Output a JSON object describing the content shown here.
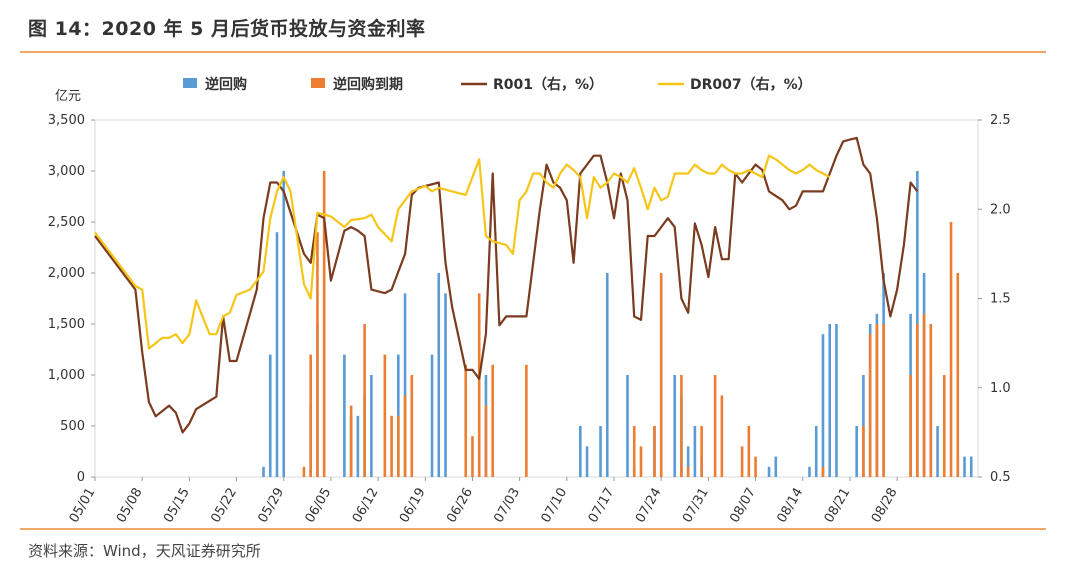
{
  "header": {
    "title": "图 14：2020 年 5 月后货币投放与资金利率"
  },
  "footer": {
    "source": "资料来源：Wind，天风证券研究所"
  },
  "colors": {
    "reverse_repo": "#5b9bd5",
    "reverse_repo_maturity": "#ed7d31",
    "r001": "#7a3b1e",
    "dr007": "#f5c518",
    "rule": "#f0a868"
  },
  "chart_data": {
    "type": "bar+line",
    "unit_left": "亿元",
    "legend": [
      "逆回购",
      "逆回购到期",
      "R001（右，%）",
      "DR007（右，%）"
    ],
    "x_ticks": [
      "05/01",
      "05/08",
      "05/15",
      "05/22",
      "05/29",
      "06/05",
      "06/12",
      "06/19",
      "06/26",
      "07/03",
      "07/10",
      "07/17",
      "07/24",
      "07/31",
      "08/07",
      "08/14",
      "08/21",
      "08/28"
    ],
    "y_left": {
      "min": 0,
      "max": 3500,
      "ticks": [
        "0",
        "500",
        "1,000",
        "1,500",
        "2,000",
        "2,500",
        "3,000",
        "3,500"
      ]
    },
    "y_right": {
      "min": 0.5,
      "max": 2.5,
      "ticks": [
        "0.5",
        "1.0",
        "1.5",
        "2.0",
        "2.5"
      ]
    },
    "x_day_range": [
      0,
      125
    ],
    "series": [
      {
        "name": "逆回购",
        "kind": "bar",
        "points": [
          [
            25,
            100
          ],
          [
            26,
            1200
          ],
          [
            27,
            2400
          ],
          [
            28,
            3000
          ],
          [
            32,
            700
          ],
          [
            33,
            1500
          ],
          [
            37,
            1200
          ],
          [
            38,
            600
          ],
          [
            39,
            600
          ],
          [
            40,
            800
          ],
          [
            41,
            1000
          ],
          [
            45,
            1200
          ],
          [
            46,
            1800
          ],
          [
            50,
            1200
          ],
          [
            51,
            2000
          ],
          [
            52,
            1800
          ],
          [
            58,
            1000
          ],
          [
            72,
            500
          ],
          [
            73,
            300
          ],
          [
            75,
            500
          ],
          [
            76,
            2000
          ],
          [
            79,
            1000
          ],
          [
            80,
            100
          ],
          [
            83,
            500
          ],
          [
            86,
            1000
          ],
          [
            87,
            800
          ],
          [
            88,
            300
          ],
          [
            89,
            500
          ],
          [
            90,
            200
          ],
          [
            100,
            100
          ],
          [
            101,
            200
          ],
          [
            106,
            100
          ],
          [
            107,
            500
          ],
          [
            108,
            1400
          ],
          [
            109,
            1500
          ],
          [
            110,
            1500
          ],
          [
            113,
            500
          ],
          [
            114,
            1000
          ],
          [
            115,
            1500
          ],
          [
            116,
            1600
          ],
          [
            117,
            2000
          ],
          [
            121,
            1600
          ],
          [
            122,
            3000
          ],
          [
            123,
            2000
          ],
          [
            124,
            1000
          ],
          [
            125,
            500
          ],
          [
            128,
            200
          ],
          [
            129,
            200
          ],
          [
            130,
            200
          ]
        ]
      },
      {
        "name": "逆回购到期",
        "kind": "bar",
        "points": [
          [
            31,
            100
          ],
          [
            32,
            1200
          ],
          [
            33,
            2400
          ],
          [
            34,
            3000
          ],
          [
            38,
            700
          ],
          [
            40,
            1500
          ],
          [
            43,
            1200
          ],
          [
            44,
            600
          ],
          [
            45,
            600
          ],
          [
            46,
            800
          ],
          [
            47,
            1000
          ],
          [
            55,
            1100
          ],
          [
            56,
            400
          ],
          [
            57,
            1800
          ],
          [
            58,
            700
          ],
          [
            59,
            1100
          ],
          [
            64,
            1100
          ],
          [
            80,
            500
          ],
          [
            81,
            300
          ],
          [
            83,
            500
          ],
          [
            84,
            2000
          ],
          [
            87,
            1000
          ],
          [
            88,
            100
          ],
          [
            90,
            500
          ],
          [
            92,
            1000
          ],
          [
            93,
            800
          ],
          [
            96,
            300
          ],
          [
            97,
            500
          ],
          [
            98,
            200
          ],
          [
            108,
            100
          ],
          [
            114,
            500
          ],
          [
            115,
            1400
          ],
          [
            116,
            1500
          ],
          [
            117,
            1500
          ],
          [
            121,
            1000
          ],
          [
            122,
            1500
          ],
          [
            123,
            1600
          ],
          [
            124,
            1500
          ],
          [
            126,
            1000
          ],
          [
            127,
            2500
          ],
          [
            128,
            2000
          ]
        ]
      },
      {
        "name": "R001（右，%）",
        "kind": "line",
        "points": [
          [
            0,
            1.85
          ],
          [
            6,
            1.55
          ],
          [
            7,
            1.2
          ],
          [
            8,
            0.92
          ],
          [
            9,
            0.84
          ],
          [
            11,
            0.9
          ],
          [
            12,
            0.86
          ],
          [
            13,
            0.75
          ],
          [
            14,
            0.8
          ],
          [
            15,
            0.88
          ],
          [
            18,
            0.95
          ],
          [
            19,
            1.4
          ],
          [
            20,
            1.15
          ],
          [
            21,
            1.15
          ],
          [
            24,
            1.55
          ],
          [
            25,
            1.95
          ],
          [
            26,
            2.15
          ],
          [
            27,
            2.15
          ],
          [
            28,
            2.1
          ],
          [
            31,
            1.75
          ],
          [
            32,
            1.7
          ],
          [
            33,
            1.97
          ],
          [
            34,
            1.95
          ],
          [
            35,
            1.6
          ],
          [
            37,
            1.88
          ],
          [
            38,
            1.9
          ],
          [
            39,
            1.88
          ],
          [
            40,
            1.85
          ],
          [
            41,
            1.55
          ],
          [
            43,
            1.53
          ],
          [
            44,
            1.55
          ],
          [
            45,
            1.65
          ],
          [
            46,
            1.75
          ],
          [
            47,
            2.08
          ],
          [
            48,
            2.12
          ],
          [
            51,
            2.15
          ],
          [
            52,
            1.7
          ],
          [
            53,
            1.45
          ],
          [
            55,
            1.1
          ],
          [
            56,
            1.1
          ],
          [
            57,
            1.05
          ],
          [
            58,
            1.3
          ],
          [
            59,
            2.2
          ],
          [
            60,
            1.35
          ],
          [
            61,
            1.4
          ],
          [
            62,
            1.4
          ],
          [
            63,
            1.4
          ],
          [
            64,
            1.4
          ],
          [
            66,
            2.0
          ],
          [
            67,
            2.25
          ],
          [
            68,
            2.15
          ],
          [
            69,
            2.12
          ],
          [
            70,
            2.05
          ],
          [
            71,
            1.7
          ],
          [
            72,
            2.2
          ],
          [
            74,
            2.3
          ],
          [
            75,
            2.3
          ],
          [
            76,
            2.15
          ],
          [
            77,
            1.95
          ],
          [
            78,
            2.2
          ],
          [
            79,
            2.05
          ],
          [
            80,
            1.4
          ],
          [
            81,
            1.38
          ],
          [
            82,
            1.85
          ],
          [
            83,
            1.85
          ],
          [
            84,
            1.9
          ],
          [
            85,
            1.95
          ],
          [
            86,
            1.9
          ],
          [
            87,
            1.5
          ],
          [
            88,
            1.42
          ],
          [
            89,
            1.92
          ],
          [
            90,
            1.8
          ],
          [
            91,
            1.62
          ],
          [
            92,
            1.9
          ],
          [
            93,
            1.72
          ],
          [
            94,
            1.72
          ],
          [
            95,
            2.2
          ],
          [
            96,
            2.15
          ],
          [
            97,
            2.2
          ],
          [
            98,
            2.25
          ],
          [
            99,
            2.22
          ],
          [
            100,
            2.1
          ],
          [
            102,
            2.05
          ],
          [
            103,
            2.0
          ],
          [
            104,
            2.02
          ],
          [
            105,
            2.1
          ],
          [
            107,
            2.1
          ],
          [
            108,
            2.1
          ],
          [
            110,
            2.3
          ],
          [
            111,
            2.38
          ],
          [
            112,
            2.39
          ],
          [
            113,
            2.4
          ],
          [
            114,
            2.25
          ],
          [
            115,
            2.2
          ],
          [
            116,
            1.95
          ],
          [
            117,
            1.6
          ],
          [
            118,
            1.4
          ],
          [
            119,
            1.55
          ],
          [
            120,
            1.8
          ],
          [
            121,
            2.15
          ],
          [
            122,
            2.1
          ]
        ]
      },
      {
        "name": "DR007（右，%）",
        "kind": "line",
        "points": [
          [
            0,
            1.87
          ],
          [
            6,
            1.57
          ],
          [
            7,
            1.55
          ],
          [
            8,
            1.22
          ],
          [
            9,
            1.25
          ],
          [
            10,
            1.28
          ],
          [
            11,
            1.28
          ],
          [
            12,
            1.3
          ],
          [
            13,
            1.25
          ],
          [
            14,
            1.3
          ],
          [
            15,
            1.49
          ],
          [
            17,
            1.3
          ],
          [
            18,
            1.3
          ],
          [
            19,
            1.4
          ],
          [
            20,
            1.42
          ],
          [
            21,
            1.52
          ],
          [
            23,
            1.55
          ],
          [
            25,
            1.65
          ],
          [
            26,
            1.95
          ],
          [
            27,
            2.1
          ],
          [
            28,
            2.18
          ],
          [
            29,
            2.1
          ],
          [
            31,
            1.58
          ],
          [
            32,
            1.5
          ],
          [
            33,
            1.98
          ],
          [
            34,
            1.97
          ],
          [
            35,
            1.96
          ],
          [
            37,
            1.9
          ],
          [
            38,
            1.94
          ],
          [
            40,
            1.95
          ],
          [
            41,
            1.97
          ],
          [
            42,
            1.9
          ],
          [
            44,
            1.82
          ],
          [
            45,
            2.0
          ],
          [
            46,
            2.05
          ],
          [
            47,
            2.1
          ],
          [
            49,
            2.13
          ],
          [
            50,
            2.1
          ],
          [
            51,
            2.12
          ],
          [
            53,
            2.1
          ],
          [
            55,
            2.08
          ],
          [
            57,
            2.28
          ],
          [
            58,
            1.85
          ],
          [
            59,
            1.82
          ],
          [
            61,
            1.8
          ],
          [
            62,
            1.75
          ],
          [
            63,
            2.05
          ],
          [
            64,
            2.1
          ],
          [
            65,
            2.2
          ],
          [
            66,
            2.2
          ],
          [
            67,
            2.15
          ],
          [
            68,
            2.12
          ],
          [
            69,
            2.2
          ],
          [
            70,
            2.25
          ],
          [
            71,
            2.22
          ],
          [
            72,
            2.18
          ],
          [
            73,
            1.95
          ],
          [
            74,
            2.18
          ],
          [
            75,
            2.12
          ],
          [
            76,
            2.15
          ],
          [
            77,
            2.2
          ],
          [
            78,
            2.18
          ],
          [
            79,
            2.15
          ],
          [
            80,
            2.23
          ],
          [
            81,
            2.12
          ],
          [
            82,
            2.0
          ],
          [
            83,
            2.12
          ],
          [
            84,
            2.05
          ],
          [
            85,
            2.07
          ],
          [
            86,
            2.2
          ],
          [
            87,
            2.2
          ],
          [
            88,
            2.2
          ],
          [
            89,
            2.25
          ],
          [
            90,
            2.22
          ],
          [
            91,
            2.2
          ],
          [
            92,
            2.2
          ],
          [
            93,
            2.25
          ],
          [
            94,
            2.22
          ],
          [
            95,
            2.2
          ],
          [
            96,
            2.2
          ],
          [
            97,
            2.22
          ],
          [
            98,
            2.2
          ],
          [
            99,
            2.18
          ],
          [
            100,
            2.3
          ],
          [
            101,
            2.28
          ],
          [
            102,
            2.25
          ],
          [
            103,
            2.22
          ],
          [
            104,
            2.2
          ],
          [
            105,
            2.22
          ],
          [
            106,
            2.25
          ],
          [
            107,
            2.22
          ],
          [
            108,
            2.2
          ],
          [
            109,
            2.18
          ]
        ]
      }
    ]
  }
}
